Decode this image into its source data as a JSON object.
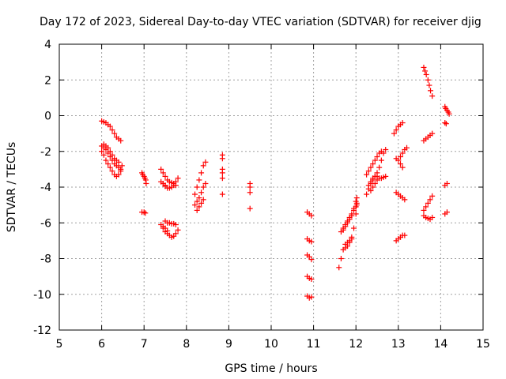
{
  "chart_data": {
    "type": "scatter",
    "title": "Day 172 of 2023, Sidereal Day-to-day VTEC variation (SDTVAR) for receiver djig",
    "xlabel": "GPS time / hours",
    "ylabel": "SDTVAR / TECUs",
    "xlim": [
      5,
      15
    ],
    "ylim": [
      -12,
      4
    ],
    "xticks": [
      "5",
      "6",
      "7",
      "8",
      "9",
      "10",
      "11",
      "12",
      "13",
      "14",
      "15"
    ],
    "yticks": [
      "-12",
      "-10",
      "-8",
      "-6",
      "-4",
      "-2",
      "0",
      "2",
      "4"
    ],
    "grid": true,
    "marker": "+",
    "marker_color": "#ff0000",
    "series": [
      {
        "name": "SDTVAR",
        "segments": [
          [
            [
              6.0,
              -0.3
            ],
            [
              6.05,
              -0.35
            ],
            [
              6.1,
              -0.4
            ],
            [
              6.15,
              -0.5
            ],
            [
              6.2,
              -0.6
            ],
            [
              6.25,
              -0.8
            ],
            [
              6.3,
              -1.0
            ],
            [
              6.35,
              -1.2
            ],
            [
              6.4,
              -1.3
            ],
            [
              6.45,
              -1.4
            ]
          ],
          [
            [
              6.0,
              -1.7
            ],
            [
              6.05,
              -1.8
            ],
            [
              6.1,
              -1.9
            ],
            [
              6.15,
              -2.1
            ],
            [
              6.2,
              -2.3
            ],
            [
              6.25,
              -2.5
            ],
            [
              6.3,
              -2.7
            ],
            [
              6.35,
              -2.8
            ],
            [
              6.4,
              -2.9
            ],
            [
              6.45,
              -3.0
            ]
          ],
          [
            [
              6.0,
              -2.0
            ],
            [
              6.05,
              -2.2
            ],
            [
              6.1,
              -2.5
            ],
            [
              6.15,
              -2.7
            ],
            [
              6.2,
              -2.9
            ],
            [
              6.25,
              -3.1
            ],
            [
              6.3,
              -3.3
            ],
            [
              6.35,
              -3.4
            ],
            [
              6.4,
              -3.3
            ],
            [
              6.45,
              -3.1
            ],
            [
              6.48,
              -2.8
            ]
          ],
          [
            [
              6.05,
              -1.6
            ],
            [
              6.1,
              -1.7
            ],
            [
              6.15,
              -1.8
            ],
            [
              6.2,
              -2.0
            ],
            [
              6.25,
              -2.2
            ],
            [
              6.3,
              -2.4
            ],
            [
              6.35,
              -2.5
            ],
            [
              6.4,
              -2.6
            ]
          ],
          [
            [
              6.95,
              -3.2
            ],
            [
              6.97,
              -3.3
            ],
            [
              7.0,
              -3.4
            ],
            [
              7.02,
              -3.5
            ],
            [
              7.04,
              -3.6
            ],
            [
              7.05,
              -3.8
            ]
          ],
          [
            [
              6.95,
              -5.4
            ],
            [
              7.0,
              -5.4
            ],
            [
              7.03,
              -5.45
            ]
          ],
          [
            [
              7.4,
              -3.0
            ],
            [
              7.45,
              -3.2
            ],
            [
              7.5,
              -3.4
            ],
            [
              7.55,
              -3.6
            ],
            [
              7.6,
              -3.7
            ],
            [
              7.65,
              -3.75
            ],
            [
              7.7,
              -3.8
            ],
            [
              7.75,
              -3.9
            ]
          ],
          [
            [
              7.45,
              -3.8
            ],
            [
              7.5,
              -3.95
            ],
            [
              7.55,
              -4.05
            ],
            [
              7.6,
              -4.05
            ],
            [
              7.65,
              -4.0
            ],
            [
              7.7,
              -3.9
            ],
            [
              7.75,
              -3.7
            ],
            [
              7.8,
              -3.5
            ]
          ],
          [
            [
              7.4,
              -3.7
            ],
            [
              7.45,
              -3.8
            ],
            [
              7.5,
              -3.9
            ]
          ],
          [
            [
              7.4,
              -6.1
            ],
            [
              7.45,
              -6.3
            ],
            [
              7.5,
              -6.5
            ],
            [
              7.55,
              -6.6
            ],
            [
              7.6,
              -6.7
            ],
            [
              7.65,
              -6.8
            ],
            [
              7.7,
              -6.75
            ],
            [
              7.75,
              -6.6
            ],
            [
              7.8,
              -6.4
            ]
          ],
          [
            [
              7.5,
              -5.9
            ],
            [
              7.55,
              -6.0
            ],
            [
              7.6,
              -6.0
            ],
            [
              7.65,
              -6.05
            ],
            [
              7.7,
              -6.05
            ],
            [
              7.75,
              -6.1
            ]
          ],
          [
            [
              7.45,
              -6.2
            ],
            [
              7.5,
              -6.3
            ],
            [
              7.55,
              -6.45
            ]
          ],
          [
            [
              8.2,
              -4.4
            ],
            [
              8.25,
              -4.0
            ],
            [
              8.3,
              -3.6
            ],
            [
              8.35,
              -3.2
            ],
            [
              8.4,
              -2.8
            ],
            [
              8.45,
              -2.6
            ]
          ],
          [
            [
              8.2,
              -5.0
            ],
            [
              8.25,
              -4.8
            ],
            [
              8.3,
              -4.6
            ],
            [
              8.35,
              -4.3
            ],
            [
              8.4,
              -4.0
            ],
            [
              8.45,
              -3.8
            ]
          ],
          [
            [
              8.25,
              -5.3
            ],
            [
              8.3,
              -5.1
            ],
            [
              8.35,
              -4.9
            ],
            [
              8.4,
              -4.7
            ]
          ],
          [
            [
              8.85,
              -2.2
            ],
            [
              8.85,
              -2.4
            ],
            [
              8.85,
              -3.0
            ],
            [
              8.85,
              -3.2
            ],
            [
              8.85,
              -3.5
            ],
            [
              8.85,
              -4.4
            ]
          ],
          [
            [
              9.5,
              -3.8
            ],
            [
              9.5,
              -4.0
            ],
            [
              9.5,
              -4.3
            ],
            [
              9.5,
              -5.2
            ]
          ],
          [
            [
              10.85,
              -5.4
            ],
            [
              10.9,
              -5.5
            ],
            [
              10.95,
              -5.6
            ]
          ],
          [
            [
              10.85,
              -6.9
            ],
            [
              10.9,
              -7.0
            ],
            [
              10.95,
              -7.05
            ]
          ],
          [
            [
              10.85,
              -7.8
            ],
            [
              10.9,
              -7.9
            ],
            [
              10.95,
              -8.05
            ]
          ],
          [
            [
              10.85,
              -9.0
            ],
            [
              10.9,
              -9.1
            ],
            [
              10.95,
              -9.15
            ]
          ],
          [
            [
              10.85,
              -10.1
            ],
            [
              10.9,
              -10.2
            ],
            [
              10.95,
              -10.15
            ]
          ],
          [
            [
              11.6,
              -8.5
            ],
            [
              11.65,
              -8.0
            ],
            [
              11.7,
              -7.5
            ],
            [
              11.75,
              -7.2
            ],
            [
              11.8,
              -7.1
            ],
            [
              11.85,
              -7.0
            ],
            [
              11.9,
              -6.8
            ],
            [
              11.95,
              -6.3
            ],
            [
              12.0,
              -5.5
            ],
            [
              12.02,
              -5.0
            ]
          ],
          [
            [
              11.65,
              -6.5
            ],
            [
              11.7,
              -6.3
            ],
            [
              11.75,
              -6.1
            ],
            [
              11.8,
              -5.9
            ],
            [
              11.85,
              -5.7
            ],
            [
              11.9,
              -5.5
            ],
            [
              11.95,
              -5.3
            ],
            [
              12.0,
              -5.1
            ],
            [
              12.02,
              -4.9
            ]
          ],
          [
            [
              11.7,
              -6.4
            ],
            [
              11.75,
              -6.2
            ],
            [
              11.8,
              -6.0
            ],
            [
              11.85,
              -5.8
            ],
            [
              11.9,
              -5.6
            ],
            [
              11.95,
              -5.2
            ],
            [
              12.0,
              -4.8
            ],
            [
              12.02,
              -4.6
            ]
          ],
          [
            [
              11.75,
              -7.4
            ],
            [
              11.8,
              -7.3
            ],
            [
              11.85,
              -7.1
            ],
            [
              11.9,
              -6.9
            ]
          ],
          [
            [
              12.25,
              -4.4
            ],
            [
              12.3,
              -4.1
            ],
            [
              12.35,
              -3.8
            ],
            [
              12.4,
              -3.6
            ],
            [
              12.45,
              -3.4
            ],
            [
              12.5,
              -3.2
            ],
            [
              12.55,
              -2.9
            ],
            [
              12.6,
              -2.5
            ],
            [
              12.65,
              -2.1
            ],
            [
              12.7,
              -1.9
            ]
          ],
          [
            [
              12.25,
              -3.3
            ],
            [
              12.3,
              -3.1
            ],
            [
              12.35,
              -2.9
            ],
            [
              12.4,
              -2.7
            ],
            [
              12.45,
              -2.5
            ],
            [
              12.5,
              -2.3
            ],
            [
              12.55,
              -2.1
            ],
            [
              12.6,
              -2.0
            ]
          ],
          [
            [
              12.3,
              -3.9
            ],
            [
              12.35,
              -3.7
            ],
            [
              12.4,
              -3.5
            ],
            [
              12.45,
              -3.4
            ],
            [
              12.5,
              -3.4
            ],
            [
              12.55,
              -3.5
            ],
            [
              12.6,
              -3.5
            ],
            [
              12.65,
              -3.45
            ],
            [
              12.7,
              -3.4
            ]
          ],
          [
            [
              12.35,
              -4.2
            ],
            [
              12.4,
              -4.0
            ],
            [
              12.45,
              -3.8
            ],
            [
              12.5,
              -3.6
            ]
          ],
          [
            [
              12.9,
              -1.0
            ],
            [
              12.95,
              -0.8
            ],
            [
              13.0,
              -0.6
            ],
            [
              13.05,
              -0.5
            ],
            [
              13.1,
              -0.4
            ]
          ],
          [
            [
              12.95,
              -2.4
            ],
            [
              13.0,
              -2.5
            ],
            [
              13.05,
              -2.7
            ],
            [
              13.1,
              -2.9
            ]
          ],
          [
            [
              13.05,
              -2.3
            ],
            [
              13.1,
              -2.1
            ],
            [
              13.15,
              -1.9
            ],
            [
              13.2,
              -1.8
            ]
          ],
          [
            [
              12.95,
              -4.3
            ],
            [
              13.0,
              -4.4
            ],
            [
              13.05,
              -4.5
            ],
            [
              13.1,
              -4.6
            ],
            [
              13.15,
              -4.7
            ]
          ],
          [
            [
              12.95,
              -7.0
            ],
            [
              13.0,
              -6.9
            ],
            [
              13.05,
              -6.8
            ],
            [
              13.1,
              -6.7
            ],
            [
              13.15,
              -6.7
            ]
          ],
          [
            [
              13.6,
              2.7
            ],
            [
              13.63,
              2.5
            ],
            [
              13.66,
              2.3
            ],
            [
              13.7,
              2.0
            ],
            [
              13.73,
              1.7
            ],
            [
              13.76,
              1.4
            ],
            [
              13.8,
              1.1
            ]
          ],
          [
            [
              13.6,
              -1.4
            ],
            [
              13.65,
              -1.3
            ],
            [
              13.7,
              -1.2
            ],
            [
              13.75,
              -1.1
            ],
            [
              13.8,
              -1.0
            ]
          ],
          [
            [
              13.6,
              -5.3
            ],
            [
              13.65,
              -5.1
            ],
            [
              13.7,
              -4.9
            ],
            [
              13.75,
              -4.7
            ],
            [
              13.8,
              -4.5
            ]
          ],
          [
            [
              13.6,
              -5.6
            ],
            [
              13.65,
              -5.7
            ],
            [
              13.7,
              -5.75
            ],
            [
              13.75,
              -5.8
            ],
            [
              13.8,
              -5.7
            ]
          ],
          [
            [
              14.1,
              0.5
            ],
            [
              14.12,
              0.4
            ],
            [
              14.15,
              0.3
            ],
            [
              14.18,
              0.2
            ],
            [
              14.2,
              0.1
            ]
          ],
          [
            [
              14.1,
              -0.4
            ],
            [
              14.13,
              -0.45
            ]
          ],
          [
            [
              14.1,
              -3.9
            ],
            [
              14.15,
              -3.8
            ]
          ],
          [
            [
              14.1,
              -5.5
            ],
            [
              14.15,
              -5.4
            ]
          ]
        ]
      }
    ]
  }
}
